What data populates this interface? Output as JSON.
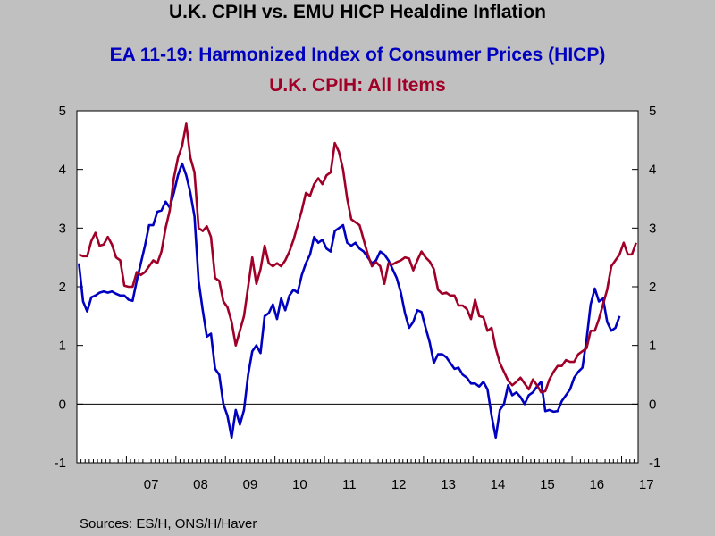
{
  "chart_data": {
    "type": "line",
    "title": "U.K. CPIH vs. EMU HICP Healdine Inflation",
    "subtitles": [
      "EA 11-19: Harmonized Index of Consumer Prices (HICP)",
      "U.K. CPIH: All Items"
    ],
    "x_labels": [
      "07",
      "08",
      "09",
      "10",
      "11",
      "12",
      "13",
      "14",
      "15",
      "16",
      "17"
    ],
    "x_range": [
      "2006-01",
      "2017-04"
    ],
    "ylim": [
      -1,
      5
    ],
    "y_ticks": [
      -1,
      0,
      1,
      2,
      3,
      4,
      5
    ],
    "y_tick_labels": [
      "-1",
      "0",
      "1",
      "2",
      "3",
      "4",
      "5"
    ],
    "dual_axis": true,
    "zero_line": true,
    "series": [
      {
        "name": "EA 11-19: Harmonized Index of Consumer Prices (HICP)",
        "color": "#0000c0",
        "start": "2006-01",
        "values": [
          2.4,
          1.75,
          1.58,
          1.82,
          1.85,
          1.9,
          1.92,
          1.9,
          1.92,
          1.88,
          1.85,
          1.85,
          1.78,
          1.76,
          2.1,
          2.4,
          2.7,
          3.05,
          3.05,
          3.28,
          3.3,
          3.45,
          3.35,
          3.6,
          3.9,
          4.1,
          3.9,
          3.6,
          3.2,
          2.1,
          1.6,
          1.15,
          1.2,
          0.6,
          0.5,
          0.0,
          -0.2,
          -0.57,
          -0.1,
          -0.35,
          -0.1,
          0.5,
          0.9,
          1.0,
          0.87,
          1.5,
          1.55,
          1.7,
          1.45,
          1.8,
          1.6,
          1.85,
          1.95,
          1.9,
          2.2,
          2.4,
          2.55,
          2.85,
          2.75,
          2.8,
          2.65,
          2.6,
          2.95,
          3.0,
          3.05,
          2.75,
          2.7,
          2.75,
          2.65,
          2.6,
          2.5,
          2.4,
          2.45,
          2.6,
          2.55,
          2.45,
          2.3,
          2.15,
          1.9,
          1.55,
          1.3,
          1.4,
          1.6,
          1.57,
          1.3,
          1.05,
          0.7,
          0.85,
          0.85,
          0.8,
          0.7,
          0.6,
          0.62,
          0.5,
          0.45,
          0.35,
          0.35,
          0.3,
          0.38,
          0.25,
          -0.2,
          -0.57,
          -0.1,
          0.0,
          0.32,
          0.15,
          0.2,
          0.12,
          0.0,
          0.15,
          0.2,
          0.3,
          0.38,
          -0.12,
          -0.1,
          -0.13,
          -0.12,
          0.05,
          0.15,
          0.25,
          0.45,
          0.55,
          0.62,
          1.1,
          1.7,
          1.97,
          1.75,
          1.8,
          1.4,
          1.25,
          1.3,
          1.5
        ]
      },
      {
        "name": "U.K. CPIH: All Items",
        "color": "#a00028",
        "start": "2006-01",
        "values": [
          2.55,
          2.52,
          2.52,
          2.78,
          2.92,
          2.7,
          2.72,
          2.85,
          2.72,
          2.5,
          2.45,
          2.02,
          2.0,
          2.0,
          2.25,
          2.2,
          2.25,
          2.35,
          2.45,
          2.4,
          2.6,
          3.0,
          3.3,
          3.85,
          4.2,
          4.4,
          4.78,
          4.2,
          3.95,
          3.0,
          2.95,
          3.03,
          2.85,
          2.15,
          2.1,
          1.75,
          1.65,
          1.4,
          1.0,
          1.25,
          1.5,
          2.0,
          2.5,
          2.05,
          2.3,
          2.7,
          2.4,
          2.35,
          2.4,
          2.35,
          2.45,
          2.6,
          2.8,
          3.05,
          3.3,
          3.6,
          3.55,
          3.75,
          3.85,
          3.75,
          3.9,
          3.95,
          4.45,
          4.3,
          4.0,
          3.5,
          3.15,
          3.1,
          3.05,
          2.8,
          2.55,
          2.35,
          2.42,
          2.35,
          2.05,
          2.4,
          2.38,
          2.42,
          2.45,
          2.5,
          2.48,
          2.28,
          2.45,
          2.6,
          2.5,
          2.43,
          2.3,
          1.95,
          1.88,
          1.9,
          1.85,
          1.85,
          1.68,
          1.68,
          1.62,
          1.45,
          1.78,
          1.5,
          1.48,
          1.25,
          1.3,
          0.95,
          0.7,
          0.55,
          0.4,
          0.32,
          0.38,
          0.45,
          0.35,
          0.25,
          0.42,
          0.32,
          0.2,
          0.22,
          0.42,
          0.55,
          0.65,
          0.65,
          0.75,
          0.72,
          0.72,
          0.85,
          0.9,
          0.95,
          1.25,
          1.25,
          1.45,
          1.7,
          1.95,
          2.35,
          2.45,
          2.55,
          2.75,
          2.55,
          2.55,
          2.75
        ]
      }
    ],
    "source": "Sources:  ES/H, ONS/H/Haver"
  }
}
